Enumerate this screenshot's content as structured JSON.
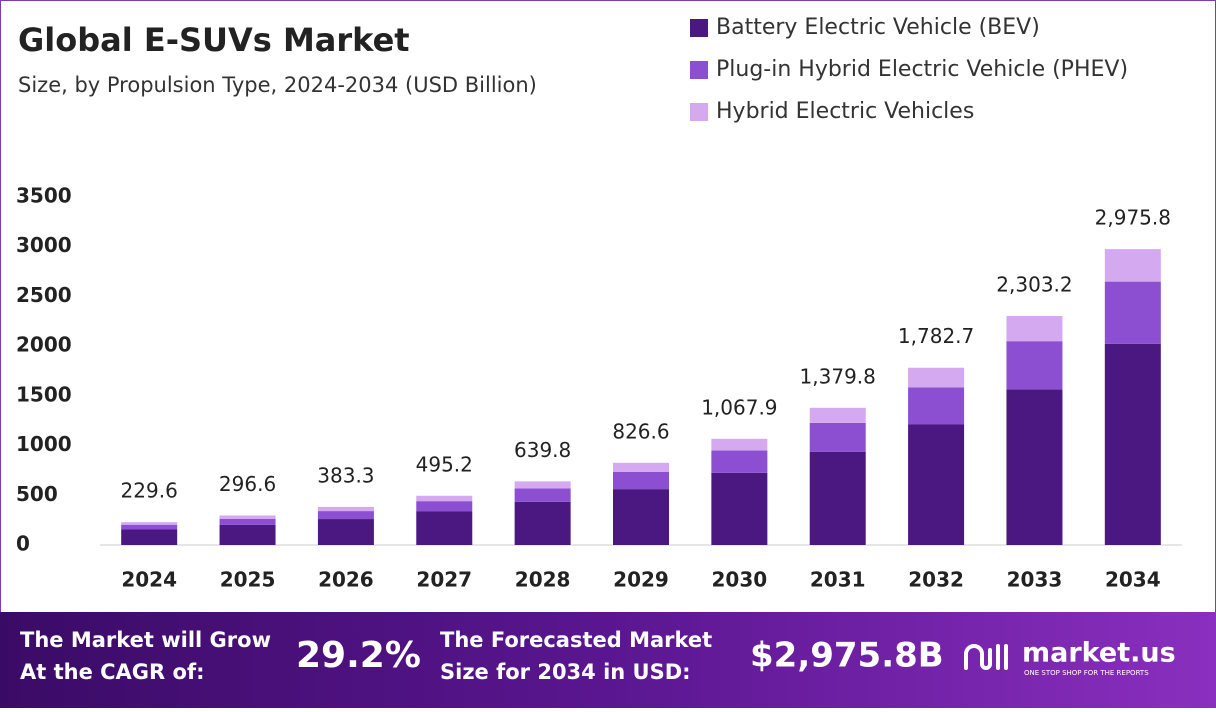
{
  "chart_data": {
    "type": "stacked-bar",
    "title": "Global E-SUVs Market",
    "subtitle": "Size, by Propulsion Type, 2024-2034 (USD Billion)",
    "categories": [
      "2024",
      "2025",
      "2026",
      "2027",
      "2028",
      "2029",
      "2030",
      "2031",
      "2032",
      "2033",
      "2034"
    ],
    "series": [
      {
        "name": "Battery Electric Vehicle (BEV)",
        "color": "#4b1882",
        "values": [
          156,
          202,
          261,
          337,
          435,
          562,
          726,
          938,
          1212,
          1566,
          2024
        ]
      },
      {
        "name": "Plug-in Hybrid Electric Vehicle (PHEV)",
        "color": "#8c4fd1",
        "values": [
          48,
          62,
          80,
          104,
          134,
          174,
          224,
          290,
          374,
          484,
          625
        ]
      },
      {
        "name": "Hybrid Electric Vehicles",
        "color": "#d5a9ef",
        "values": [
          25.6,
          32.6,
          42.3,
          54.2,
          70.8,
          90.6,
          117.9,
          151.8,
          196.7,
          253.2,
          326.8
        ]
      }
    ],
    "totals": [
      229.6,
      296.6,
      383.3,
      495.2,
      639.8,
      826.6,
      1067.9,
      1379.8,
      1782.7,
      2303.2,
      2975.8
    ],
    "total_labels": [
      "229.6",
      "296.6",
      "383.3",
      "495.2",
      "639.8",
      "826.6",
      "1,067.9",
      "1,379.8",
      "1,782.7",
      "2,303.2",
      "2,975.8"
    ],
    "ylim": [
      0,
      3500
    ],
    "yticks": [
      0,
      500,
      1000,
      1500,
      2000,
      2500,
      3000,
      3500
    ],
    "grid": false,
    "legend": "top-right"
  },
  "footer": {
    "cagr_label": [
      "The Market will Grow",
      "At the CAGR of:"
    ],
    "cagr": "29.2%",
    "forecast_label": [
      "The Forecasted Market",
      "Size for 2034 in USD:"
    ],
    "forecast_value": "$2,975.8B",
    "brand": "market.us",
    "tagline": "ONE STOP SHOP FOR THE REPORTS"
  }
}
